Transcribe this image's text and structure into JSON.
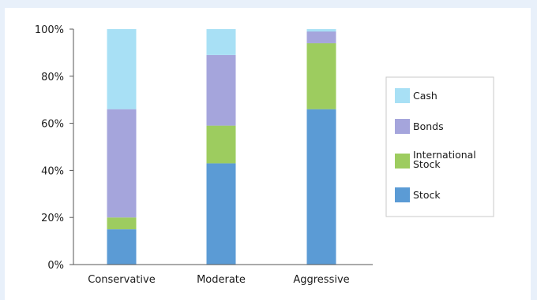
{
  "chart_data": {
    "type": "bar",
    "stacked": true,
    "categories": [
      "Conservative",
      "Moderate",
      "Aggressive"
    ],
    "series": [
      {
        "name": "Stock",
        "color": "#5b9bd5",
        "values": [
          15,
          43,
          66
        ]
      },
      {
        "name": "International Stock",
        "color": "#9dcc5f",
        "values": [
          5,
          16,
          28
        ]
      },
      {
        "name": "Bonds",
        "color": "#a5a5dc",
        "values": [
          46,
          30,
          5
        ]
      },
      {
        "name": "Cash",
        "color": "#a8e0f5",
        "values": [
          34,
          11,
          1
        ]
      }
    ],
    "yticks": [
      "0%",
      "20%",
      "40%",
      "60%",
      "80%",
      "100%"
    ],
    "ylim": [
      0,
      100
    ],
    "legend": {
      "placement": "right",
      "order": [
        "Cash",
        "Bonds",
        "International Stock",
        "Stock"
      ],
      "labels": [
        "Cash",
        "Bonds",
        "International\nStock",
        "Stock"
      ]
    },
    "title": "",
    "xlabel": "",
    "ylabel": ""
  }
}
